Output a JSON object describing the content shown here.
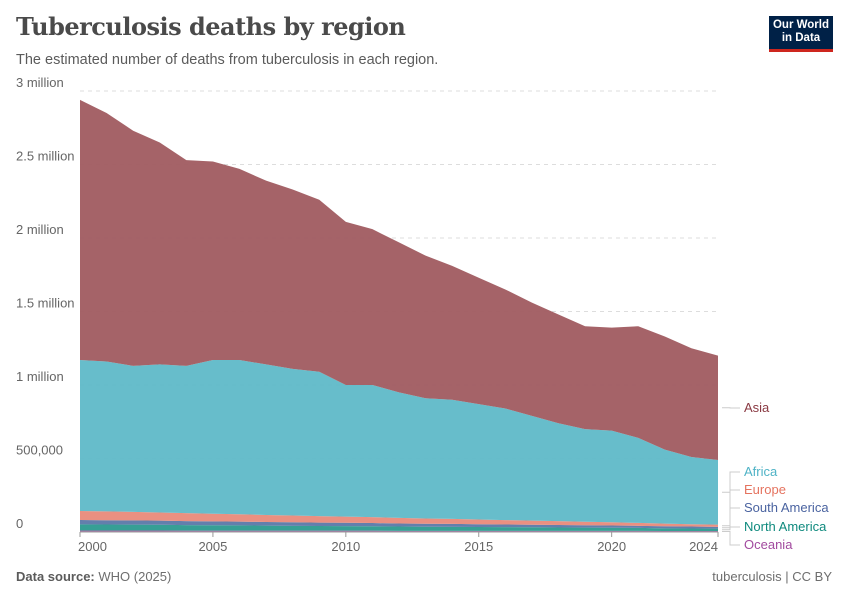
{
  "header": {
    "title": "Tuberculosis deaths by region",
    "subtitle": "The estimated number of deaths from tuberculosis in each region.",
    "logo": "Our World in Data"
  },
  "footer": {
    "source_label": "Data source:",
    "source": "WHO (2025)",
    "right": "tuberculosis | CC BY"
  },
  "chart_data": {
    "type": "area",
    "stacked": true,
    "title": "Tuberculosis deaths by region",
    "ylim": [
      0,
      3000000
    ],
    "y_ticks": [
      {
        "v": 0,
        "label": "0"
      },
      {
        "v": 500000,
        "label": "500,000"
      },
      {
        "v": 1000000,
        "label": "1 million"
      },
      {
        "v": 1500000,
        "label": "1.5 million"
      },
      {
        "v": 2000000,
        "label": "2 million"
      },
      {
        "v": 2500000,
        "label": "2.5 million"
      },
      {
        "v": 3000000,
        "label": "3 million"
      }
    ],
    "x_ticks": [
      2000,
      2005,
      2010,
      2015,
      2020,
      2024
    ],
    "grid": "horizontal dashed",
    "legend": "right, end labels",
    "x": [
      2000,
      2001,
      2002,
      2003,
      2004,
      2005,
      2006,
      2007,
      2008,
      2009,
      2010,
      2011,
      2012,
      2013,
      2014,
      2015,
      2016,
      2017,
      2018,
      2019,
      2020,
      2021,
      2022,
      2023,
      2024
    ],
    "series": [
      {
        "name": "Oceania",
        "color": "#a767a5",
        "label_color": "#a24a9f",
        "values": [
          10000,
          10000,
          10000,
          10000,
          9000,
          9000,
          9000,
          9000,
          9000,
          9000,
          9000,
          9000,
          8000,
          8000,
          8000,
          8000,
          8000,
          8000,
          8000,
          8000,
          8000,
          8000,
          7000,
          7000,
          7000
        ]
      },
      {
        "name": "North America",
        "color": "#2b9a8f",
        "label_color": "#0f8a7e",
        "values": [
          42000,
          41000,
          40000,
          39000,
          38000,
          37000,
          36000,
          34000,
          33000,
          32000,
          31000,
          30000,
          29000,
          28000,
          27000,
          26000,
          25000,
          24000,
          23000,
          22000,
          21000,
          20000,
          18000,
          17000,
          16000
        ]
      },
      {
        "name": "South America",
        "color": "#5b78a8",
        "label_color": "#4a63a0",
        "values": [
          30000,
          29000,
          29000,
          28000,
          27000,
          26000,
          26000,
          25000,
          24000,
          23000,
          23000,
          22000,
          21000,
          20000,
          20000,
          19000,
          18000,
          17000,
          17000,
          16000,
          15000,
          14000,
          14000,
          13000,
          12000
        ]
      },
      {
        "name": "Europe",
        "color": "#e98a7a",
        "label_color": "#e5735f",
        "values": [
          61000,
          60000,
          58000,
          56000,
          54000,
          52000,
          50000,
          48000,
          46000,
          44000,
          42000,
          40000,
          38000,
          36000,
          34000,
          32000,
          30000,
          28000,
          26000,
          24000,
          22000,
          20000,
          18000,
          16000,
          15000
        ]
      },
      {
        "name": "Africa",
        "color": "#5fb9c8",
        "label_color": "#4fb3c6",
        "values": [
          1027000,
          1020000,
          993000,
          1007000,
          1002000,
          1046000,
          1049000,
          1024000,
          998000,
          982000,
          895000,
          899000,
          854000,
          818000,
          811000,
          785000,
          759000,
          713000,
          666000,
          630000,
          624000,
          578000,
          503000,
          457000,
          440000
        ]
      },
      {
        "name": "Asia",
        "color": "#a05b60",
        "label_color": "#8a3a43",
        "values": [
          1770000,
          1690000,
          1600000,
          1510000,
          1400000,
          1350000,
          1300000,
          1250000,
          1220000,
          1170000,
          1110000,
          1060000,
          1020000,
          970000,
          910000,
          860000,
          810000,
          770000,
          740000,
          700000,
          700000,
          760000,
          770000,
          740000,
          710000
        ]
      }
    ]
  }
}
